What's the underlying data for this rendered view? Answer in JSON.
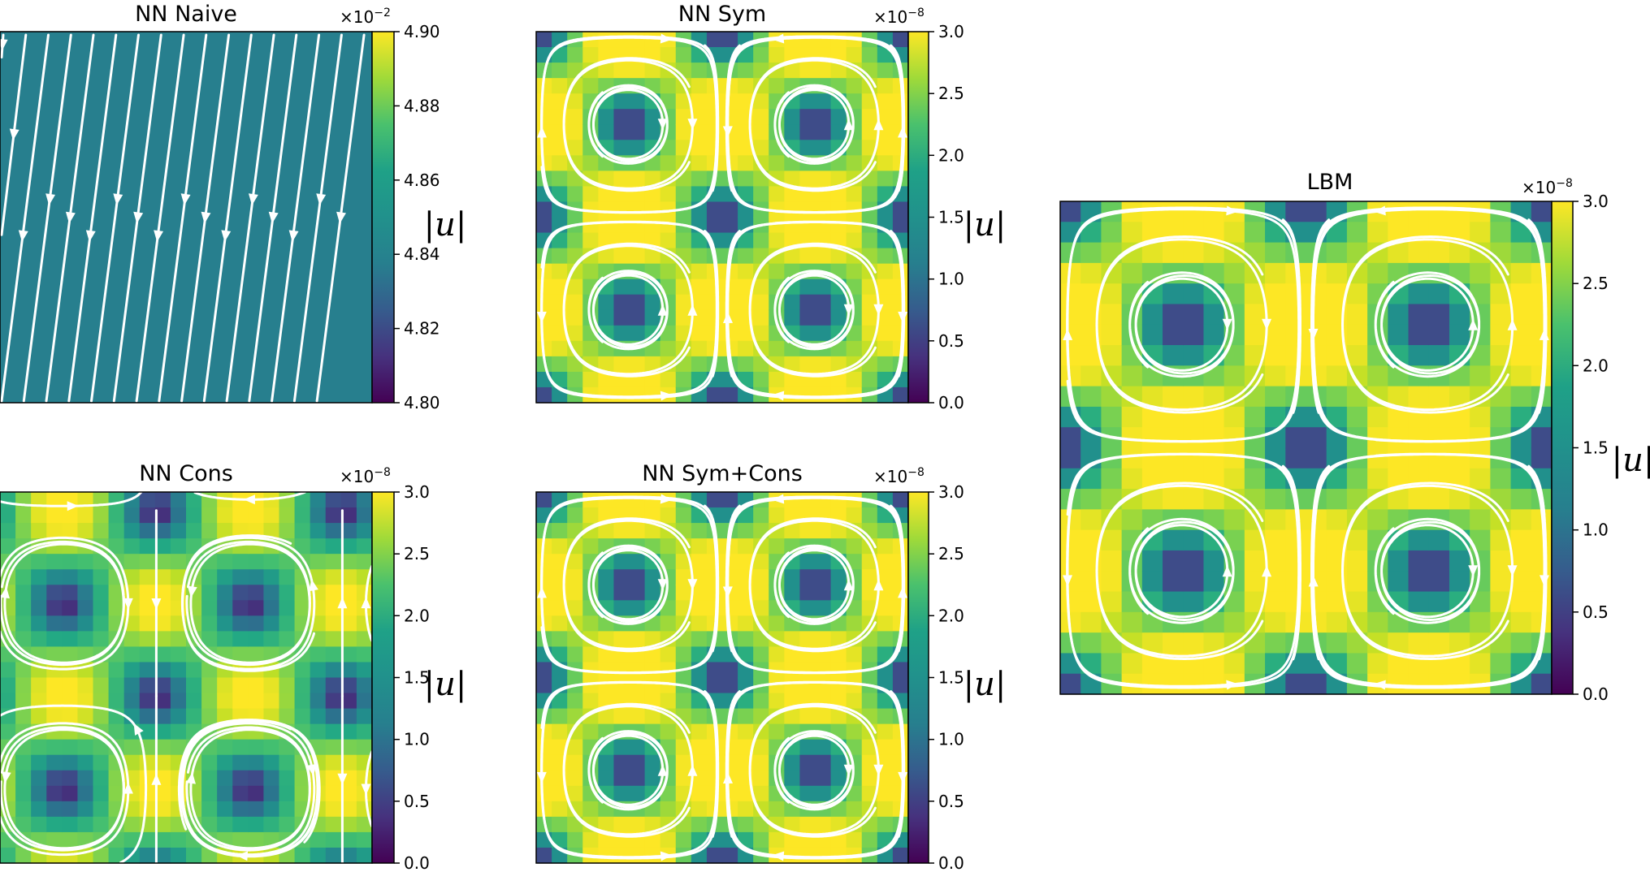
{
  "colormap": "viridis",
  "streamline_color": "#ffffff",
  "chart_data": [
    {
      "type": "heatmap",
      "title": "NN Naive",
      "pattern": "uniform-diagonal-flow",
      "colorbar": {
        "label": "|u|",
        "range": [
          4.8,
          4.9
        ],
        "ticks": [
          "4.80",
          "4.82",
          "4.84",
          "4.86",
          "4.88",
          "4.90"
        ],
        "multiplier": "×10",
        "exponent": "−2"
      }
    },
    {
      "type": "heatmap",
      "title": "NN Sym",
      "pattern": "symmetric-vortex-lattice",
      "colorbar": {
        "label": "|u|",
        "range": [
          0.0,
          3.0
        ],
        "ticks": [
          "0.0",
          "0.5",
          "1.0",
          "1.5",
          "2.0",
          "2.5",
          "3.0"
        ],
        "multiplier": "×10",
        "exponent": "−8"
      }
    },
    {
      "type": "heatmap",
      "title": "NN Cons",
      "pattern": "four-vortex-rotated",
      "colorbar": {
        "label": "|u|",
        "range": [
          0.0,
          3.0
        ],
        "ticks": [
          "0.0",
          "0.5",
          "1.0",
          "1.5",
          "2.0",
          "2.5",
          "3.0"
        ],
        "multiplier": "×10",
        "exponent": "−8"
      }
    },
    {
      "type": "heatmap",
      "title": "NN Sym+Cons",
      "pattern": "symmetric-vortex-lattice",
      "colorbar": {
        "label": "|u|",
        "range": [
          0.0,
          3.0
        ],
        "ticks": [
          "0.0",
          "0.5",
          "1.0",
          "1.5",
          "2.0",
          "2.5",
          "3.0"
        ],
        "multiplier": "×10",
        "exponent": "−8"
      }
    },
    {
      "type": "heatmap",
      "title": "LBM",
      "pattern": "symmetric-vortex-lattice",
      "colorbar": {
        "label": "|u|",
        "range": [
          0.0,
          3.0
        ],
        "ticks": [
          "0.0",
          "0.5",
          "1.0",
          "1.5",
          "2.0",
          "2.5",
          "3.0"
        ],
        "multiplier": "×10",
        "exponent": "−8"
      }
    }
  ]
}
